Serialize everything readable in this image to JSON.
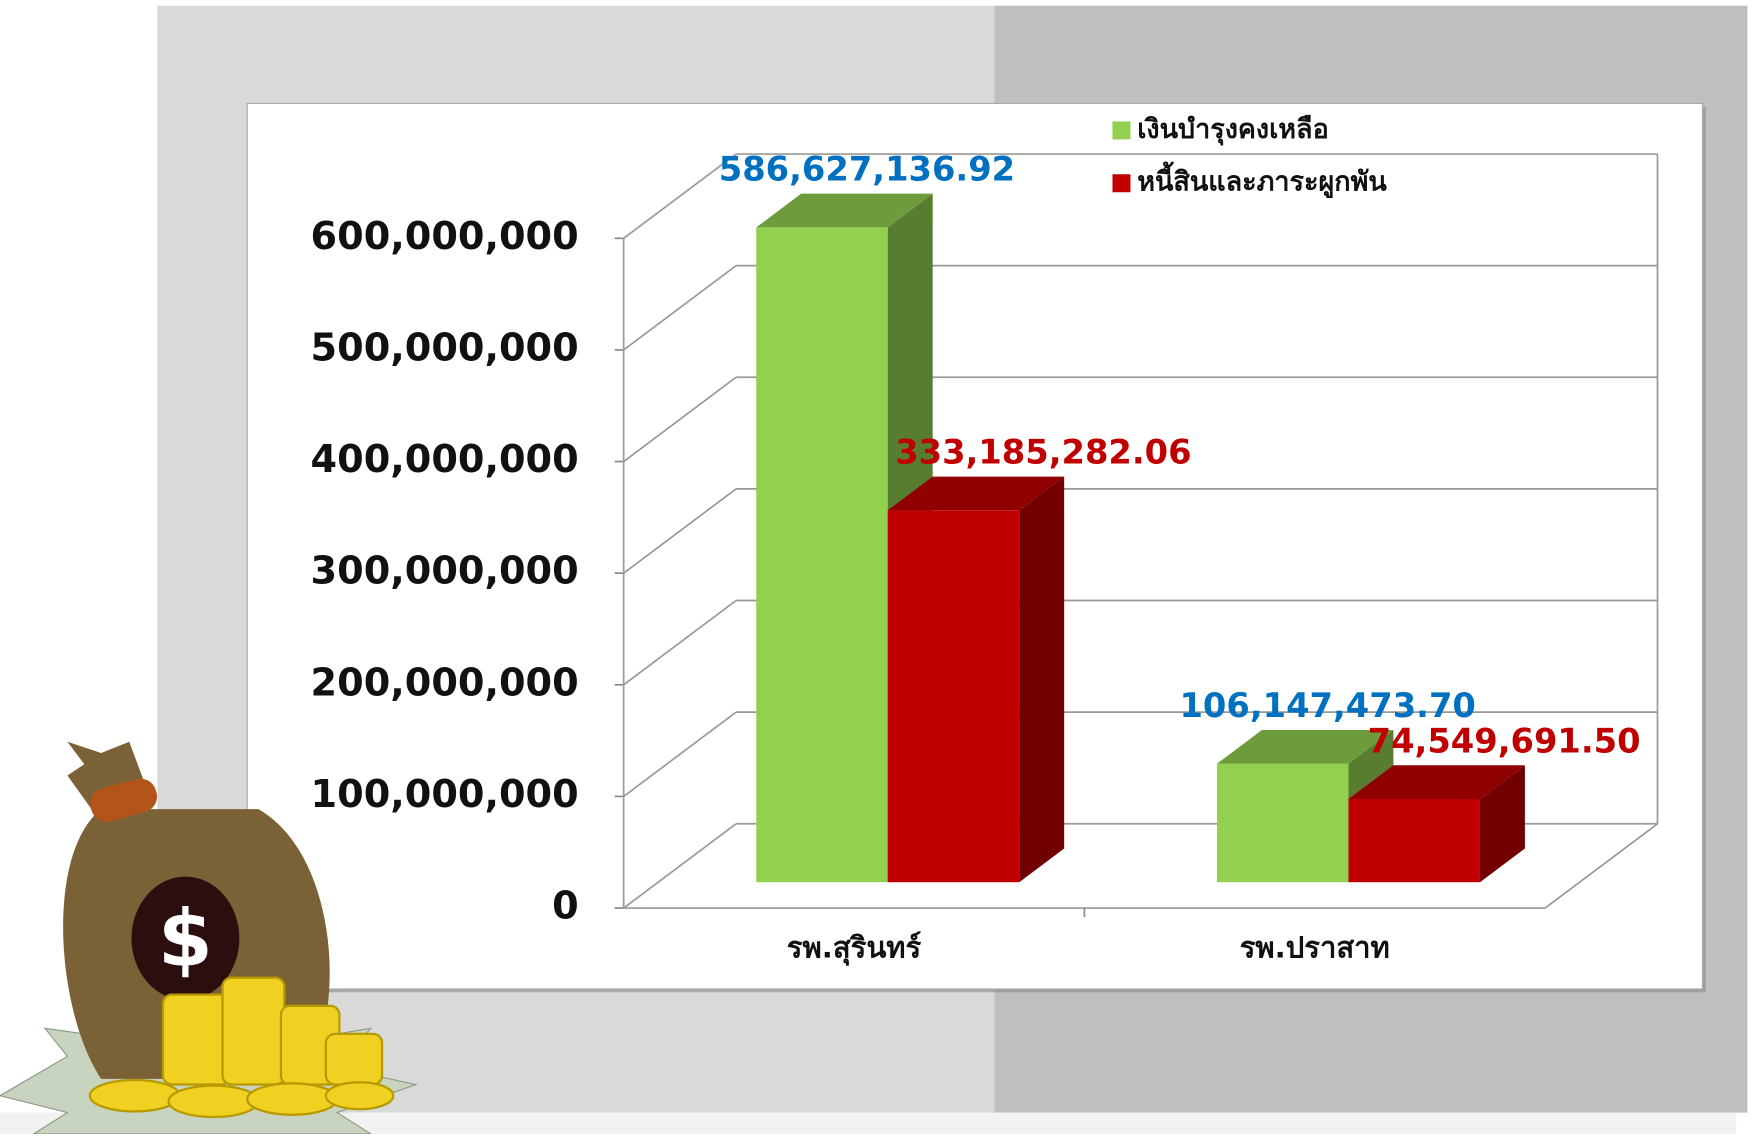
{
  "chart_data": {
    "type": "bar3d",
    "categories": [
      "รพ.สุรินทร์",
      "รพ.ปราสาท"
    ],
    "series": [
      {
        "name": "เงินบำรุงคงเหลือ",
        "color": "#92d050",
        "label_color": "#0070c0",
        "values": [
          586627136.92,
          106147473.7
        ],
        "value_labels": [
          "586,627,136.92",
          "106,147,473.70"
        ]
      },
      {
        "name": "หนี้สินและภาระผูกพัน",
        "color": "#c00000",
        "label_color": "#c00000",
        "values": [
          333185282.06,
          74549691.5
        ],
        "value_labels": [
          "333,185,282.06",
          "74,549,691.50"
        ]
      }
    ],
    "ylim": [
      0,
      600000000
    ],
    "yticks": [
      0,
      {
        "value": 100000000,
        "label": "100,000,000"
      },
      {
        "value": 200000000,
        "label": "200,000,000"
      },
      {
        "value": 300000000,
        "label": "300,000,000"
      },
      {
        "value": 400000000,
        "label": "400,000,000"
      },
      {
        "value": 500000000,
        "label": "500,000,000"
      },
      {
        "value": 600000000,
        "label": "600,000,000"
      }
    ],
    "grid": true,
    "legend": "top-right"
  }
}
